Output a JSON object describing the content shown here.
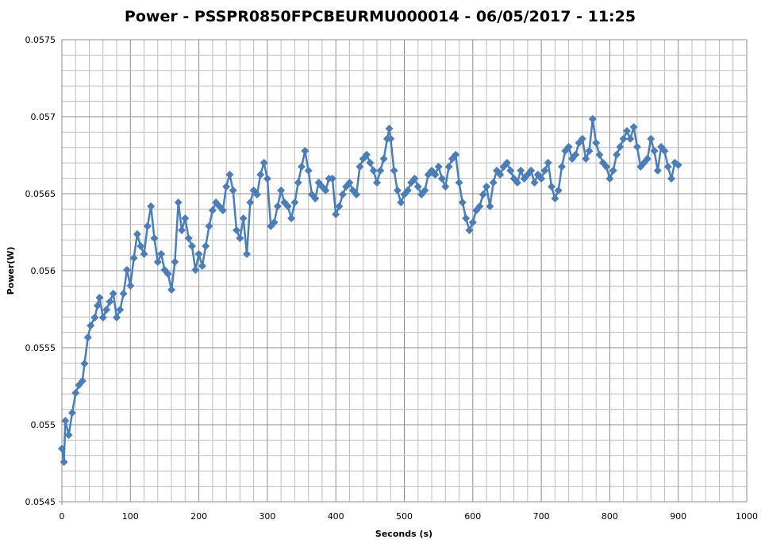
{
  "chart_data": {
    "type": "line",
    "title": "Power - PSSPR0850FPCBEURMU000014 - 06/05/2017 - 11:25",
    "xlabel": "Seconds (s)",
    "ylabel": "Power(W)",
    "xlim": [
      0,
      1000
    ],
    "ylim": [
      0.0545,
      0.0575
    ],
    "x_major_step": 100,
    "x_minor_step": 20,
    "y_major_step": 0.0005,
    "y_minor_step": 0.0001,
    "x_ticks": [
      "0",
      "100",
      "200",
      "300",
      "400",
      "500",
      "600",
      "700",
      "800",
      "900",
      "1000"
    ],
    "y_ticks": [
      "0.0545",
      "0.055",
      "0.0555",
      "0.056",
      "0.0565",
      "0.057",
      "0.0575"
    ],
    "grid": true,
    "legend": "none",
    "marker": "diamond",
    "color": "#4a7ebb",
    "series": [
      {
        "x": [
          0,
          3,
          5,
          10,
          15,
          20,
          25,
          30,
          33,
          38,
          42,
          48,
          52,
          55,
          60,
          65,
          70,
          75,
          80,
          85,
          90,
          95,
          100,
          105,
          110,
          115,
          120,
          125,
          130,
          135,
          140,
          145,
          150,
          155,
          160,
          165,
          170,
          175,
          180,
          185,
          190,
          195,
          200,
          205,
          210,
          215,
          220,
          225,
          230,
          235,
          240,
          245,
          250,
          255,
          260,
          265,
          270,
          275,
          280,
          285,
          290,
          295,
          300,
          305,
          310,
          315,
          320,
          325,
          330,
          335,
          340,
          345,
          350,
          355,
          360,
          365,
          370,
          375,
          380,
          385,
          390,
          395,
          400,
          405,
          410,
          415,
          420,
          425,
          430,
          435,
          440,
          445,
          450,
          455,
          460,
          465,
          470,
          475,
          478,
          480,
          485,
          490,
          495,
          500,
          505,
          510,
          515,
          520,
          525,
          530,
          535,
          540,
          545,
          550,
          555,
          560,
          565,
          570,
          575,
          580,
          585,
          590,
          595,
          600,
          605,
          610,
          615,
          620,
          625,
          630,
          635,
          640,
          645,
          650,
          655,
          660,
          665,
          670,
          675,
          680,
          685,
          690,
          695,
          700,
          705,
          710,
          715,
          720,
          725,
          730,
          735,
          740,
          745,
          750,
          755,
          760,
          765,
          770,
          775,
          780,
          785,
          790,
          795,
          800,
          805,
          810,
          815,
          820,
          825,
          830,
          835,
          840,
          845,
          850,
          855,
          860,
          865,
          870,
          875,
          880,
          885,
          890,
          895,
          900
        ],
        "y": [
          0.054845,
          0.054758,
          0.055026,
          0.054933,
          0.055077,
          0.055206,
          0.055258,
          0.055284,
          0.055397,
          0.055567,
          0.055644,
          0.055696,
          0.055773,
          0.055825,
          0.055696,
          0.055747,
          0.055799,
          0.055851,
          0.055696,
          0.055747,
          0.055851,
          0.056005,
          0.055902,
          0.056082,
          0.056237,
          0.05616,
          0.056108,
          0.056289,
          0.056418,
          0.056211,
          0.056057,
          0.056108,
          0.056005,
          0.055979,
          0.055876,
          0.056057,
          0.056443,
          0.056263,
          0.05634,
          0.056211,
          0.05616,
          0.056005,
          0.056108,
          0.056031,
          0.05616,
          0.056289,
          0.056392,
          0.056443,
          0.056418,
          0.056392,
          0.056546,
          0.056624,
          0.056521,
          0.056263,
          0.056211,
          0.05634,
          0.056108,
          0.056443,
          0.056521,
          0.056495,
          0.056624,
          0.056701,
          0.056598,
          0.056289,
          0.056314,
          0.056418,
          0.056521,
          0.056443,
          0.056418,
          0.05634,
          0.056443,
          0.056572,
          0.056675,
          0.056778,
          0.05665,
          0.056495,
          0.056469,
          0.056572,
          0.056546,
          0.056521,
          0.056598,
          0.056598,
          0.056366,
          0.056418,
          0.056495,
          0.056546,
          0.056572,
          0.056521,
          0.056495,
          0.056675,
          0.056727,
          0.056753,
          0.056701,
          0.05665,
          0.056572,
          0.05665,
          0.056727,
          0.056856,
          0.056923,
          0.056856,
          0.05665,
          0.056521,
          0.056443,
          0.056495,
          0.056521,
          0.056572,
          0.056598,
          0.056546,
          0.056495,
          0.056521,
          0.056624,
          0.05665,
          0.056624,
          0.056675,
          0.056598,
          0.056546,
          0.056675,
          0.056727,
          0.056753,
          0.056572,
          0.056443,
          0.05634,
          0.056263,
          0.056314,
          0.056392,
          0.056418,
          0.056495,
          0.056546,
          0.056418,
          0.056572,
          0.05665,
          0.056624,
          0.056675,
          0.056701,
          0.05665,
          0.056598,
          0.056572,
          0.05665,
          0.056598,
          0.056624,
          0.05665,
          0.056572,
          0.056624,
          0.056598,
          0.05665,
          0.056701,
          0.056546,
          0.056469,
          0.056521,
          0.056675,
          0.056778,
          0.056804,
          0.056727,
          0.056753,
          0.05683,
          0.056856,
          0.056727,
          0.056778,
          0.056985,
          0.05683,
          0.056753,
          0.056701,
          0.056675,
          0.056598,
          0.05665,
          0.056753,
          0.056804,
          0.056856,
          0.056907,
          0.056856,
          0.056933,
          0.056804,
          0.056675,
          0.056701,
          0.056727,
          0.056856,
          0.056778,
          0.05665,
          0.056804,
          0.056778,
          0.056675,
          0.056598,
          0.056701,
          0.056686
        ]
      }
    ]
  }
}
